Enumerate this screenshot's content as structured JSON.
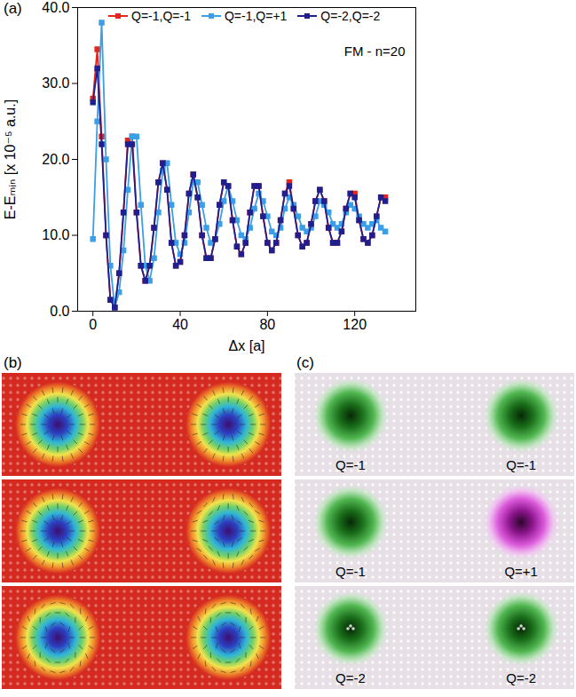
{
  "chart_data": {
    "type": "line",
    "x_label": "Δx [a]",
    "y_label": "E-Eₘᵢₙ [x 10⁻⁵ a.u.]",
    "annotations": [
      "FM - n=20"
    ],
    "legend": "top",
    "grid": false,
    "marker": "square",
    "line_style": "solid",
    "xlim": [
      -7,
      148
    ],
    "ylim": [
      0,
      40
    ],
    "xticks": [
      0,
      40,
      80,
      120
    ],
    "yticks": [
      {
        "value": 0,
        "label": "0.0"
      },
      {
        "value": 10,
        "label": "10.0"
      },
      {
        "value": 20,
        "label": "20.0"
      },
      {
        "value": 30,
        "label": "30.0"
      },
      {
        "value": 40,
        "label": "40.0"
      }
    ],
    "x": [
      0,
      2,
      4,
      6,
      8,
      10,
      12,
      14,
      16,
      18,
      20,
      22,
      24,
      26,
      28,
      30,
      32,
      34,
      36,
      38,
      40,
      42,
      44,
      46,
      48,
      50,
      52,
      54,
      56,
      58,
      60,
      62,
      64,
      66,
      68,
      70,
      72,
      74,
      76,
      78,
      80,
      82,
      84,
      86,
      88,
      90,
      92,
      94,
      96,
      98,
      100,
      102,
      104,
      106,
      108,
      110,
      112,
      114,
      116,
      118,
      120,
      122,
      124,
      126,
      128,
      130,
      132,
      134
    ],
    "series": [
      {
        "name": "Q=-1,Q=-1",
        "color": "#e3261c",
        "values": [
          28,
          34.5,
          23,
          10,
          1.5,
          0.5,
          5,
          13,
          22.5,
          23,
          13,
          6,
          4,
          6,
          11,
          17,
          19.5,
          16,
          9,
          6,
          6.5,
          10,
          15.5,
          18,
          15,
          10,
          7,
          7,
          9.5,
          14,
          17,
          16.5,
          12,
          8.5,
          7.5,
          9,
          13,
          16.5,
          16.5,
          12.5,
          9,
          8,
          9,
          12,
          15.5,
          17,
          13.5,
          10,
          8.5,
          9,
          11.5,
          14.5,
          16,
          14.5,
          11,
          9,
          9,
          10.5,
          13.5,
          15.5,
          15.5,
          12,
          9.5,
          9,
          10,
          12.5,
          15,
          15
        ]
      },
      {
        "name": "Q=-1,Q=+1",
        "color": "#3a9fe6",
        "values": [
          9.5,
          25,
          38,
          20,
          6,
          0.5,
          2.5,
          8,
          16,
          23,
          23,
          14,
          6,
          4,
          7,
          13,
          18.5,
          19.5,
          14,
          9,
          7.5,
          9,
          13,
          17,
          17,
          14,
          11,
          9,
          9.5,
          11.5,
          14.5,
          16.5,
          14.5,
          12,
          10,
          9.5,
          11,
          13.5,
          15.5,
          14.5,
          12.5,
          10.5,
          10,
          11,
          13.5,
          15,
          14,
          12.5,
          11,
          10.5,
          11,
          12.5,
          14.5,
          14,
          13,
          11.5,
          11,
          11.5,
          13,
          14,
          13.5,
          12.5,
          11.5,
          11,
          11.5,
          12,
          11,
          10.5
        ]
      },
      {
        "name": "Q=-2,Q=-2",
        "color": "#1f1f8f",
        "values": [
          27.5,
          32,
          22,
          10,
          1.5,
          0.5,
          5,
          13,
          22,
          22,
          13,
          6,
          4,
          6,
          11,
          17,
          19.5,
          16,
          9,
          6,
          6.5,
          10,
          15.5,
          18,
          15,
          10,
          7,
          7,
          9.5,
          14,
          17,
          16.5,
          12,
          8.5,
          7.5,
          9,
          13,
          16.5,
          16.5,
          12.5,
          9,
          8,
          9,
          12,
          15.5,
          16.5,
          13.5,
          10,
          8.5,
          9,
          11.5,
          14.5,
          16,
          14.5,
          11,
          9,
          9,
          10.5,
          13.5,
          15.5,
          15,
          12,
          9.5,
          9,
          10,
          12.5,
          15,
          14.5
        ]
      }
    ]
  },
  "panel_labels": [
    "(a)",
    "(b)",
    "(c)"
  ],
  "skyrmions": [
    [
      {
        "label": "Q=-1",
        "charge": -1
      },
      {
        "label": "Q=-1",
        "charge": -1
      }
    ],
    [
      {
        "label": "Q=-1",
        "charge": -1
      },
      {
        "label": "Q=+1",
        "charge": 1
      }
    ],
    [
      {
        "label": "Q=-2",
        "charge": -2
      },
      {
        "label": "Q=-2",
        "charge": -2
      }
    ]
  ]
}
